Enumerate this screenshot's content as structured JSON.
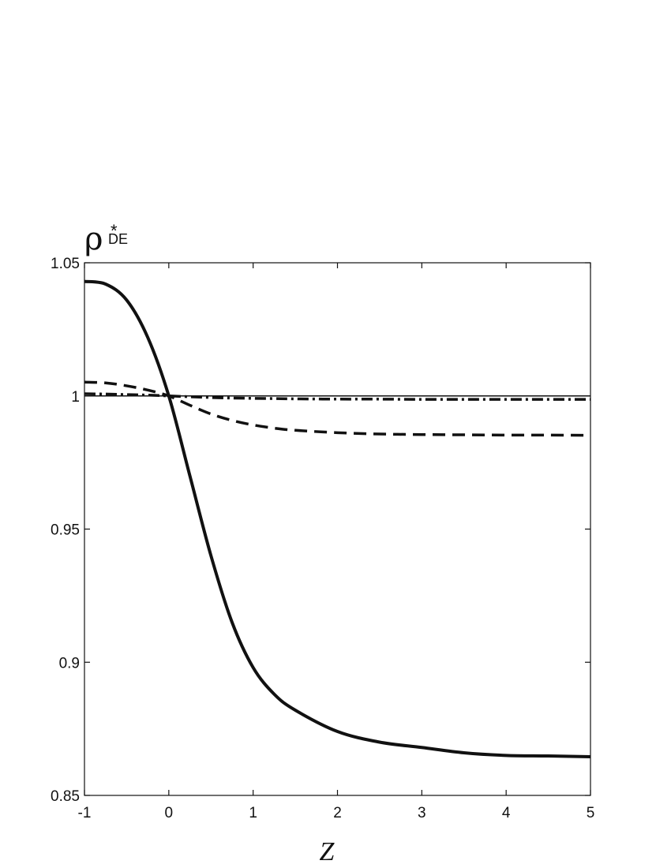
{
  "chart_data": {
    "type": "line",
    "xlabel": "Z",
    "ylabel": {
      "symbol": "ρ",
      "superscript": "*",
      "subscript": "DE"
    },
    "xlim": [
      -1,
      5
    ],
    "ylim": [
      0.85,
      1.05
    ],
    "xticks": [
      -1,
      0,
      1,
      2,
      3,
      4,
      5
    ],
    "xtick_labels": [
      "-1",
      "0",
      "1",
      "2",
      "3",
      "4",
      "5"
    ],
    "yticks": [
      0.85,
      0.9,
      0.95,
      1,
      1.05
    ],
    "ytick_labels": [
      "0.85",
      "0.9",
      "0.95",
      "1",
      "1.05"
    ],
    "grid": false,
    "x": [
      -1,
      -0.75,
      -0.5,
      -0.25,
      0,
      0.25,
      0.5,
      0.75,
      1,
      1.25,
      1.5,
      2,
      2.5,
      3,
      3.5,
      4,
      4.5,
      5
    ],
    "series": [
      {
        "style": "solid-thick",
        "values": [
          1.043,
          1.042,
          1.036,
          1.022,
          1.0,
          0.97,
          0.94,
          0.915,
          0.898,
          0.888,
          0.882,
          0.874,
          0.87,
          0.868,
          0.866,
          0.865,
          0.8648,
          0.8645
        ]
      },
      {
        "style": "dashed",
        "values": [
          1.0052,
          1.0049,
          1.0038,
          1.0022,
          1.0,
          0.9965,
          0.9932,
          0.9908,
          0.9891,
          0.9879,
          0.9871,
          0.9862,
          0.9857,
          0.9855,
          0.9854,
          0.9853,
          0.9853,
          0.9852
        ]
      },
      {
        "style": "dash-dot",
        "values": [
          1.0008,
          1.0007,
          1.0005,
          1.0003,
          1.0,
          0.9997,
          0.9994,
          0.9992,
          0.9991,
          0.999,
          0.9989,
          0.9988,
          0.9988,
          0.9987,
          0.9987,
          0.9987,
          0.9987,
          0.9987
        ]
      },
      {
        "style": "solid-thin",
        "values": [
          1,
          1,
          1,
          1,
          1,
          1,
          1,
          1,
          1,
          1,
          1,
          1,
          1,
          1,
          1,
          1,
          1,
          1
        ]
      }
    ]
  }
}
